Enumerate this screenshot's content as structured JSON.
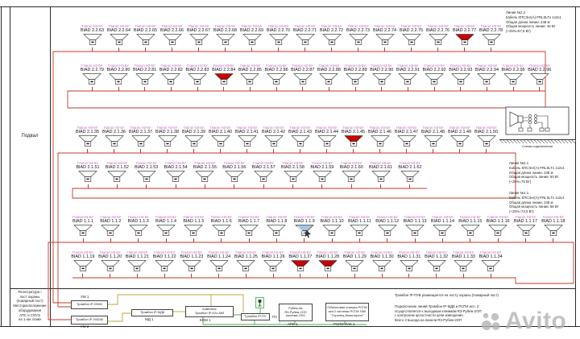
{
  "plan": {
    "area_label": "Подвал",
    "post_label_lines": [
      "Регистратура /",
      "пост охраны",
      "(пожарный пост)",
      "Месторасположение",
      "оборудования",
      "АПС и СОУЭ",
      "на 1-ом этаже"
    ]
  },
  "speaker_model": "Глагол Н3-5У",
  "rows": [
    {
      "line": "2.2",
      "tag_prefix": "BIAD 2.2.",
      "from": 63,
      "to": 78,
      "red": [
        77
      ],
      "selected": []
    },
    {
      "line": "2.2",
      "tag_prefix": "BIAD 2.2.",
      "from": 79,
      "to": 96,
      "red": [
        84
      ],
      "selected": []
    },
    {
      "line": "2.1",
      "tag_prefix": "BIAD 2.1.",
      "from": 35,
      "to": 50,
      "red": [
        45
      ],
      "selected": []
    },
    {
      "line": "2.1",
      "tag_prefix": "BIAD 2.1.",
      "from": 51,
      "to": 62,
      "red": [],
      "selected": []
    },
    {
      "line": "1.1",
      "tag_prefix": "BIAD 1.1.",
      "from": 1,
      "to": 18,
      "red": [],
      "selected": [
        9
      ]
    },
    {
      "line": "1.1",
      "tag_prefix": "BIAD 1.1.",
      "from": 19,
      "to": 34,
      "red": [
        27,
        28
      ],
      "selected": []
    }
  ],
  "line_notes": {
    "l22": {
      "lines": [
        "Линия №2.2",
        "Кабель КПСЭнг(А)-FRLSLTx 1х2х1",
        "Общая длина линии: 248 м",
        "Общая мощность линии: 46 Вт",
        "(+25%=57,5 Вт)"
      ]
    },
    "l21": {
      "lines": [
        "Линия №2.1",
        "Кабель КПСЭнг(А)-FRLSLTx 1х2х1",
        "Общая длина линии: 248 м",
        "Общая мощность линии: 60 Вт",
        "(+25%=75 Вт)"
      ]
    },
    "l11": {
      "lines": [
        "Линия №1.1",
        "Кабель КПСЭнг(А)-FRLSLTx 1х2х1",
        "Общая длина линии: 248 м",
        "Общая мощность линии: 58 Вт",
        "(+25%=72,5 Вт)"
      ]
    }
  },
  "detail": {
    "caption": "Схема подключения"
  },
  "equipment": {
    "um1_label": "УМ 1",
    "um1_box": "Тромбон IP-УМ50",
    "um2_box": "Тромбон IP-УМ240",
    "um2_label": "УМ 2",
    "md1_box": "Тромбон IP-МД8",
    "md1_label": "МД 1",
    "kom1_box_lines": [
      "Комплекс",
      "Тромбон IP-К2х-А60"
    ],
    "kom1_label": "КОМ 1",
    "pu1_box": "Тромбон IP-ПУ",
    "pu1_label": "ПУ 1",
    "ark1_box_lines": [
      "Рубеж-4А",
      "R3-Рубеж-2ОП",
      "система ОПС"
    ],
    "ark1_label": "АРК 1",
    "rspi_box_lines": [
      "Объектовая станция РСПИ",
      "исп.2 системы РСПИ ПАК",
      "\"Стрелец-Мониторинг\""
    ],
    "rspi_label": "РСПИ ПАК 1"
  },
  "notes": {
    "n1": "Тромбон IP-ПУВ размещается на посту охраны (пожарный пост)",
    "n2_lines": [
      "Подключение линий Тромбон IP-МД8 и РСПИ исп. 2",
      "осуществляется к выходным клеммам R3-Рубеж-2ОП",
      "с контролем целостности цепи извещения.",
      "Всего 2 выхода на панели R3-Рубеж-2ОП"
    ]
  },
  "watermark": "Avito",
  "colors": {
    "wire_red": "#c0392b",
    "alarm_red": "#cc0000",
    "model_pink": "#c45cc4",
    "wire_olive": "#b8a830",
    "wire_green": "#3fae49",
    "wire_cyan": "#7fd4d4",
    "selected_blue": "#a8c4e4"
  }
}
